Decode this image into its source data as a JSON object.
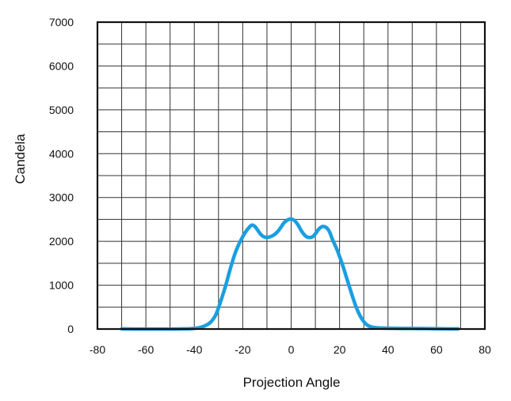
{
  "chart_data": {
    "type": "line",
    "title": "",
    "xlabel": "Projection Angle",
    "ylabel": "Candela",
    "xlim": [
      -80,
      80
    ],
    "ylim": [
      0,
      7000
    ],
    "x_ticks": [
      -80,
      -60,
      -40,
      -20,
      0,
      20,
      40,
      60,
      80
    ],
    "x_tick_labels": [
      "-80",
      "-60",
      "-40",
      "-20",
      "0",
      "20",
      "40",
      "60",
      "80"
    ],
    "y_ticks": [
      0,
      1000,
      2000,
      3000,
      4000,
      5000,
      6000,
      7000
    ],
    "y_tick_labels": [
      "0",
      "1000",
      "2000",
      "3000",
      "4000",
      "5000",
      "6000",
      "7000"
    ],
    "x_minor_step": 10,
    "y_minor_step": 500,
    "grid": true,
    "legend": "none",
    "series": [
      {
        "color": "#1a9fe0",
        "x": [
          -70,
          -60,
          -50,
          -45,
          -40,
          -37,
          -35,
          -33,
          -31,
          -29,
          -27,
          -25,
          -23,
          -21,
          -19,
          -17,
          -16,
          -15,
          -14,
          -13,
          -12,
          -11,
          -10,
          -9,
          -8,
          -7,
          -6,
          -5,
          -4,
          -3,
          -2,
          -1,
          0,
          1,
          2,
          3,
          4,
          5,
          6,
          7,
          8,
          9,
          10,
          11,
          12,
          13,
          14,
          15,
          16,
          17,
          19,
          21,
          23,
          25,
          27,
          29,
          31,
          33,
          35,
          37,
          40,
          45,
          50,
          55,
          60,
          65,
          69
        ],
        "y": [
          5,
          0,
          0,
          3,
          15,
          45,
          90,
          170,
          340,
          650,
          1000,
          1400,
          1750,
          2000,
          2200,
          2340,
          2370,
          2340,
          2270,
          2190,
          2130,
          2100,
          2090,
          2100,
          2120,
          2150,
          2200,
          2260,
          2340,
          2420,
          2470,
          2500,
          2510,
          2490,
          2440,
          2360,
          2260,
          2180,
          2120,
          2090,
          2090,
          2110,
          2170,
          2250,
          2310,
          2340,
          2330,
          2290,
          2200,
          2050,
          1800,
          1500,
          1150,
          800,
          480,
          250,
          110,
          50,
          30,
          22,
          18,
          15,
          12,
          10,
          8,
          6,
          5
        ]
      }
    ]
  }
}
